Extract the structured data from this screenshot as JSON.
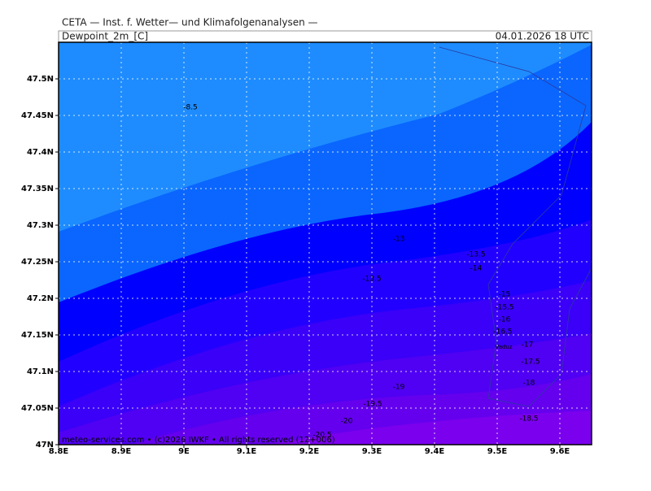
{
  "header": {
    "institute": "CETA — Inst. f. Wetter— und Klimafolgenanalysen —",
    "variable": "Dewpoint_2m_[C]",
    "valid_time": "04.01.2026 18 UTC"
  },
  "map": {
    "x_labels": [
      "8.8E",
      "8.9E",
      "9E",
      "9.1E",
      "9.2E",
      "9.3E",
      "9.4E",
      "9.5E",
      "9.6E"
    ],
    "y_labels": [
      "47N",
      "47.05N",
      "47.1N",
      "47.15N",
      "47.2N",
      "47.25N",
      "47.3N",
      "47.35N",
      "47.4N",
      "47.45N",
      "47.5N"
    ],
    "contour_labels": [
      "-8.5",
      "-13",
      "-13.5",
      "-14",
      "-13.5",
      "-15",
      "-15.5",
      "-16",
      "-16.5",
      "-17",
      "-17.5",
      "-18",
      "-19",
      "-19.5",
      "-20",
      "-18.5",
      "-20.5"
    ],
    "place": "Vaduz"
  },
  "footer": "meteo-services.com • (c)2026 IWKF • All rights reserved (12+006)"
}
